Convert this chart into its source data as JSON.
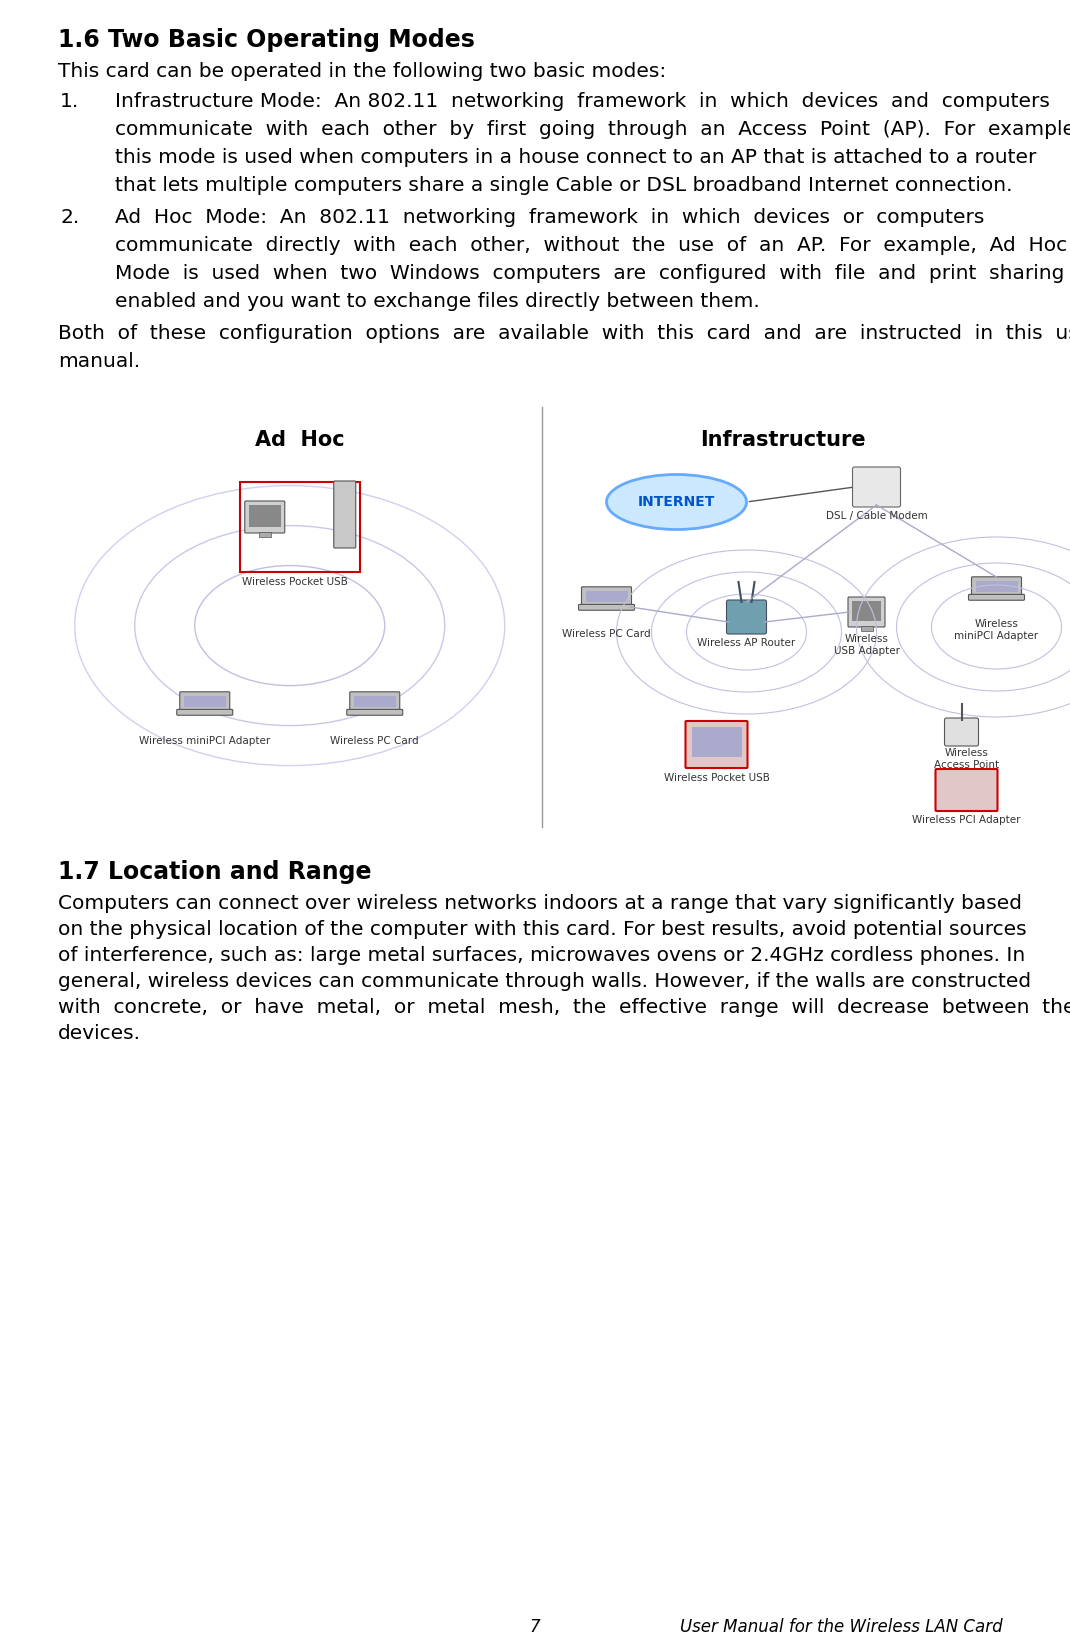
{
  "title": "1.6 Two Basic Operating Modes",
  "section2_title": "1.7 Location and Range",
  "bg_color": "#ffffff",
  "text_color": "#000000",
  "page_number": "7",
  "footer_text": "User Manual for the Wireless LAN Card",
  "intro_text": "This card can be operated in the following two basic modes:",
  "item1_lines": [
    "Infrastructure Mode:  An 802.11  networking  framework  in  which  devices  and  computers",
    "communicate  with  each  other  by  first  going  through  an  Access  Point  (AP).  For  example,",
    "this mode is used when computers in a house connect to an AP that is attached to a router",
    "that lets multiple computers share a single Cable or DSL broadband Internet connection."
  ],
  "item2_lines": [
    "Ad  Hoc  Mode:  An  802.11  networking  framework  in  which  devices  or  computers",
    "communicate  directly  with  each  other,  without  the  use  of  an  AP.  For  example,  Ad  Hoc",
    "Mode  is  used  when  two  Windows  computers  are  configured  with  file  and  print  sharing",
    "enabled and you want to exchange files directly between them."
  ],
  "closing_lines": [
    "Both  of  these  configuration  options  are  available  with  this  card  and  are  instructed  in  this  user",
    "manual."
  ],
  "sec2_lines": [
    "Computers can connect over wireless networks indoors at a range that vary significantly based",
    "on the physical location of the computer with this card. For best results, avoid potential sources",
    "of interference, such as: large metal surfaces, microwaves ovens or 2.4GHz cordless phones. In",
    "general, wireless devices can communicate through walls. However, if the walls are constructed",
    "with  concrete,  or  have  metal,  or  metal  mesh,  the  effective  range  will  decrease  between  the",
    "devices."
  ]
}
